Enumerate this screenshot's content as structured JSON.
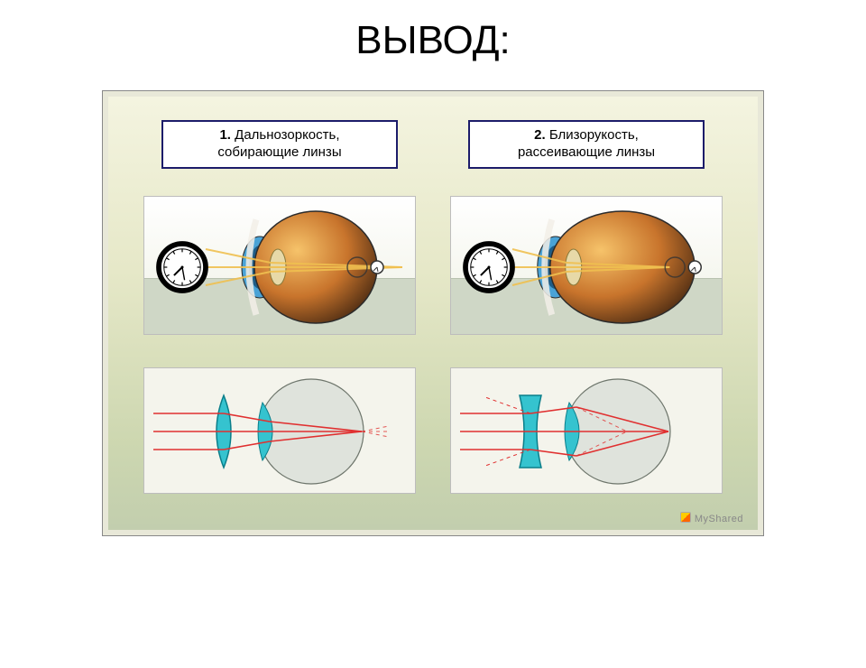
{
  "title": "ВЫВОД:",
  "headers": [
    {
      "num": "1.",
      "line1": "Дальнозоркость,",
      "line2": "собирающие линзы"
    },
    {
      "num": "2.",
      "line1": "Близорукость,",
      "line2": "рассеивающие линзы"
    }
  ],
  "eye": {
    "iris_outer": "#4aa3d6",
    "iris_inner": "#1f5d87",
    "sclera": "#f2efe8",
    "body_light": "#f6c36a",
    "body_shadow": "#4a2a12",
    "body_mid": "#c8742c",
    "lens": "#e7d9a8",
    "outline": "#2b2b2b",
    "ray": "#f0c050",
    "clock_bg": "#ffffff",
    "clock_fg": "#000000",
    "small_clock_stroke": "#333333",
    "elongation_myopia": 1.18,
    "focus_offset_hyperopia": 28,
    "focus_offset_myopia": -28
  },
  "scheme": {
    "circle_fill": "#dfe3dc",
    "circle_stroke": "#6d756b",
    "lens_fill": "#35c3cf",
    "lens_stroke": "#0a7e8a",
    "ray": "#e03030",
    "ray_dash": "4 4"
  },
  "watermark": "MyShared"
}
